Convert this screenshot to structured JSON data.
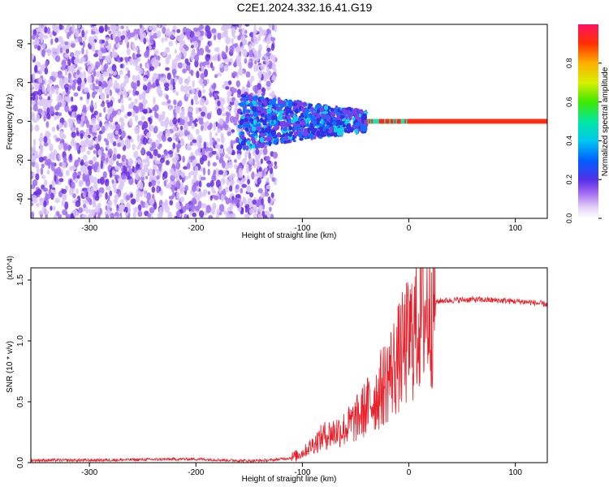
{
  "title": "C2E1.2024.332.16.41.G19",
  "chart_data": [
    {
      "type": "heatmap",
      "xlabel": "Height of straight line (km)",
      "ylabel": "Frequency (Hz)",
      "xlim": [
        -355,
        130
      ],
      "ylim": [
        -50,
        50
      ],
      "x_ticks": [
        -300,
        -200,
        -100,
        0,
        100
      ],
      "y_ticks": [
        -40,
        -20,
        0,
        20,
        40
      ],
      "colorbar": {
        "label": "Normalized spectral amplitude",
        "range": [
          0,
          1
        ],
        "ticks": [
          "0.0",
          "0.2",
          "0.4",
          "0.6",
          "0.8"
        ]
      },
      "regions": [
        {
          "x_range": [
            -355,
            -125
          ],
          "freq_range": [
            -50,
            50
          ],
          "amplitude": "low (0.05-0.15), broadband noise"
        },
        {
          "x_range": [
            -160,
            -40
          ],
          "freq_range": [
            -15,
            12
          ],
          "amplitude": "0.1-0.35, band centred near 0 Hz"
        },
        {
          "x_range": [
            -40,
            130
          ],
          "freq_range": [
            -1,
            1
          ],
          "amplitude": "peak 0.8-1.0 at 0 Hz"
        }
      ],
      "grid": false
    },
    {
      "type": "line",
      "xlabel": "Height of straight line (km)",
      "ylabel": "SNR (10 * v/v)",
      "y_multiplier": "(x10^4)",
      "xlim": [
        -355,
        130
      ],
      "ylim": [
        0,
        1.6
      ],
      "x_ticks": [
        -300,
        -200,
        -100,
        0,
        100
      ],
      "y_ticks": [
        "0.0",
        "0.5",
        "1.0",
        "1.5"
      ],
      "series": [
        {
          "color": "#e8202a",
          "x": [
            -355,
            -300,
            -250,
            -200,
            -170,
            -150,
            -130,
            -110,
            -100,
            -90,
            -80,
            -70,
            -60,
            -50,
            -40,
            -30,
            -20,
            -10,
            0,
            5,
            10,
            20,
            30,
            60,
            90,
            110,
            130
          ],
          "y": [
            0.02,
            0.02,
            0.025,
            0.03,
            0.02,
            0.015,
            0.02,
            0.04,
            0.08,
            0.15,
            0.22,
            0.25,
            0.28,
            0.35,
            0.45,
            0.55,
            0.7,
            0.85,
            1.0,
            1.1,
            1.2,
            1.3,
            1.33,
            1.34,
            1.33,
            1.32,
            1.3
          ]
        }
      ],
      "grid": false
    }
  ]
}
